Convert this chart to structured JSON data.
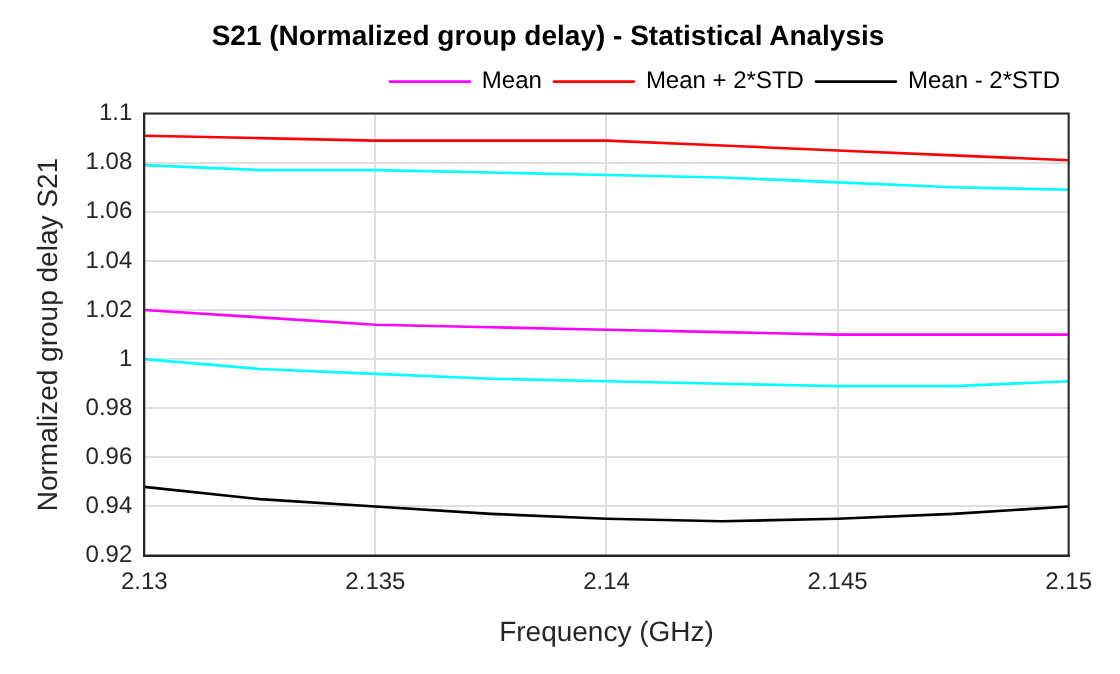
{
  "chart_data": {
    "type": "line",
    "title": "S21 (Normalized group delay) - Statistical Analysis",
    "xlabel": "Frequency (GHz)",
    "ylabel": "Normalized group delay S21",
    "x": [
      2.13,
      2.1325,
      2.135,
      2.1375,
      2.14,
      2.1425,
      2.145,
      2.1475,
      2.15
    ],
    "series": [
      {
        "name": "Mean",
        "color": "#ff00ff",
        "values": [
          1.02,
          1.017,
          1.014,
          1.013,
          1.012,
          1.011,
          1.01,
          1.01,
          1.01
        ]
      },
      {
        "name": "Mean + 2*STD",
        "color": "#ff0000",
        "values": [
          1.091,
          1.09,
          1.089,
          1.089,
          1.089,
          1.087,
          1.085,
          1.083,
          1.081
        ]
      },
      {
        "name": "Mean - 2*STD",
        "color": "#000000",
        "values": [
          0.948,
          0.943,
          0.94,
          0.937,
          0.935,
          0.934,
          0.935,
          0.937,
          0.94
        ]
      },
      {
        "color": "#00ffff",
        "values": [
          1.079,
          1.077,
          1.077,
          1.076,
          1.075,
          1.074,
          1.072,
          1.07,
          1.069
        ]
      },
      {
        "color": "#00ffff",
        "values": [
          1.0,
          0.996,
          0.994,
          0.992,
          0.991,
          0.99,
          0.989,
          0.989,
          0.991
        ]
      }
    ],
    "xlim": [
      2.13,
      2.15
    ],
    "xticks": [
      2.13,
      2.135,
      2.14,
      2.145,
      2.15
    ],
    "ylim": [
      0.92,
      1.1
    ],
    "yticks": [
      0.92,
      0.94,
      0.96,
      0.98,
      1,
      1.02,
      1.04,
      1.06,
      1.08,
      1.1
    ],
    "grid": true,
    "legend": "top right",
    "marker": "none",
    "line_style": "solid"
  }
}
